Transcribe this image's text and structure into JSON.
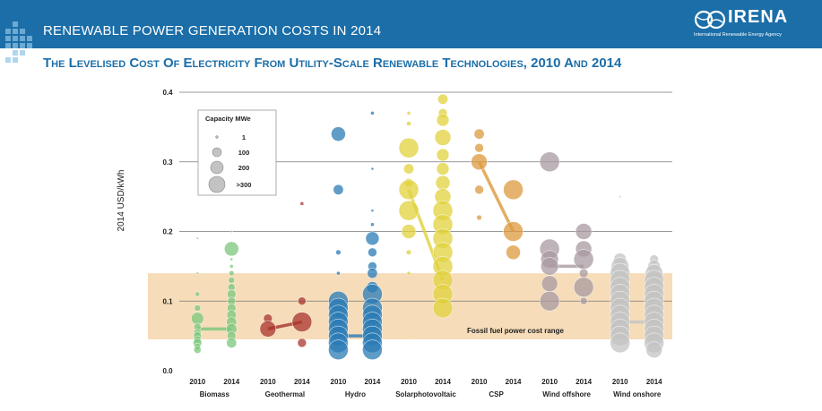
{
  "header": {
    "title": "RENEWABLE POWER GENERATION COSTS IN 2014",
    "logo_text": "IRENA",
    "logo_subtext": "International Renewable Energy Agency"
  },
  "colors": {
    "banner": "#1b6ea8",
    "subtitle": "#1b6ea8",
    "fossil_band": "#f6dcb8",
    "biomass": "#7bc77b",
    "geothermal": "#a8352e",
    "hydro": "#2a7bb5",
    "solar_pv": "#e0d23c",
    "csp": "#dc9a3c",
    "wind_offshore": "#a89aa0",
    "wind_onshore": "#c3c3c3"
  },
  "chart_data": {
    "type": "scatter",
    "title": "The Levelised Cost Of Electricity From Utility-Scale Renewable Technologies, 2010 And 2014",
    "xlabel": "",
    "ylabel": "2014 USD/kWh",
    "ylim": [
      0,
      0.4
    ],
    "y_ticks": [
      "0.0",
      "0.1",
      "0.2",
      "0.3",
      "0.4"
    ],
    "grid": true,
    "band": {
      "label": "Fossil fuel power cost range",
      "y_range": [
        0.045,
        0.14
      ]
    },
    "legend": {
      "title": "Capacity MWe",
      "placement": "top-left",
      "entries": [
        {
          "label": "1",
          "mw": 1
        },
        {
          "label": "100",
          "mw": 100
        },
        {
          "label": "200",
          "mw": 200
        },
        {
          "label": ">300",
          "mw": 300
        }
      ]
    },
    "year_labels": [
      "2010",
      "2014"
    ],
    "categories": [
      {
        "name": "Biomass",
        "color_key": "biomass",
        "avg": [
          0.06,
          0.06
        ],
        "points_2010": [
          [
            0.19,
            1
          ],
          [
            0.14,
            2
          ],
          [
            0.11,
            8
          ],
          [
            0.09,
            15
          ],
          [
            0.075,
            60
          ],
          [
            0.063,
            20
          ],
          [
            0.055,
            20
          ],
          [
            0.05,
            25
          ],
          [
            0.045,
            20
          ],
          [
            0.04,
            30
          ],
          [
            0.035,
            15
          ],
          [
            0.03,
            20
          ]
        ],
        "points_2014": [
          [
            0.2,
            1
          ],
          [
            0.175,
            80
          ],
          [
            0.16,
            3
          ],
          [
            0.15,
            5
          ],
          [
            0.14,
            10
          ],
          [
            0.13,
            15
          ],
          [
            0.12,
            20
          ],
          [
            0.11,
            30
          ],
          [
            0.1,
            25
          ],
          [
            0.09,
            30
          ],
          [
            0.08,
            35
          ],
          [
            0.07,
            40
          ],
          [
            0.06,
            45
          ],
          [
            0.05,
            30
          ],
          [
            0.04,
            40
          ]
        ]
      },
      {
        "name": "Geothermal",
        "color_key": "geothermal",
        "avg": [
          0.06,
          0.07
        ],
        "points_2010": [
          [
            0.075,
            30
          ],
          [
            0.06,
            100
          ]
        ],
        "points_2014": [
          [
            0.24,
            5
          ],
          [
            0.1,
            25
          ],
          [
            0.07,
            150
          ],
          [
            0.04,
            30
          ]
        ]
      },
      {
        "name": "Hydro",
        "color_key": "hydro",
        "avg": [
          0.05,
          0.05
        ],
        "points_2010": [
          [
            0.34,
            80
          ],
          [
            0.26,
            40
          ],
          [
            0.17,
            10
          ],
          [
            0.14,
            5
          ],
          [
            0.1,
            200
          ],
          [
            0.09,
            250
          ],
          [
            0.08,
            300
          ],
          [
            0.07,
            300
          ],
          [
            0.06,
            350
          ],
          [
            0.05,
            350
          ],
          [
            0.04,
            300
          ],
          [
            0.03,
            300
          ]
        ],
        "points_2014": [
          [
            0.37,
            5
          ],
          [
            0.29,
            3
          ],
          [
            0.23,
            3
          ],
          [
            0.21,
            5
          ],
          [
            0.19,
            70
          ],
          [
            0.17,
            30
          ],
          [
            0.15,
            30
          ],
          [
            0.14,
            40
          ],
          [
            0.12,
            50
          ],
          [
            0.11,
            150
          ],
          [
            0.09,
            200
          ],
          [
            0.08,
            250
          ],
          [
            0.07,
            300
          ],
          [
            0.06,
            350
          ],
          [
            0.05,
            350
          ],
          [
            0.04,
            300
          ],
          [
            0.03,
            250
          ]
        ]
      },
      {
        "name": "Solarphotovoltaic",
        "color_key": "solar_pv",
        "avg": [
          0.26,
          0.13
        ],
        "points_2010": [
          [
            0.37,
            5
          ],
          [
            0.355,
            8
          ],
          [
            0.32,
            350
          ],
          [
            0.29,
            40
          ],
          [
            0.27,
            30
          ],
          [
            0.26,
            300
          ],
          [
            0.23,
            250
          ],
          [
            0.2,
            80
          ],
          [
            0.17,
            10
          ],
          [
            0.14,
            5
          ],
          [
            0.05,
            2
          ]
        ],
        "points_2014": [
          [
            0.39,
            40
          ],
          [
            0.37,
            30
          ],
          [
            0.36,
            60
          ],
          [
            0.335,
            100
          ],
          [
            0.31,
            60
          ],
          [
            0.29,
            60
          ],
          [
            0.27,
            80
          ],
          [
            0.25,
            100
          ],
          [
            0.23,
            300
          ],
          [
            0.21,
            350
          ],
          [
            0.19,
            350
          ],
          [
            0.17,
            350
          ],
          [
            0.15,
            350
          ],
          [
            0.13,
            350
          ],
          [
            0.11,
            350
          ],
          [
            0.09,
            300
          ]
        ]
      },
      {
        "name": "CSP",
        "color_key": "csp",
        "avg": [
          0.3,
          0.2
        ],
        "points_2010": [
          [
            0.34,
            40
          ],
          [
            0.32,
            30
          ],
          [
            0.3,
            100
          ],
          [
            0.26,
            30
          ],
          [
            0.22,
            10
          ]
        ],
        "points_2014": [
          [
            0.26,
            200
          ],
          [
            0.2,
            250
          ],
          [
            0.17,
            80
          ]
        ]
      },
      {
        "name": "Wind offshore",
        "color_key": "wind_offshore",
        "avg": [
          0.15,
          0.15
        ],
        "points_2010": [
          [
            0.3,
            250
          ],
          [
            0.175,
            250
          ],
          [
            0.16,
            120
          ],
          [
            0.15,
            120
          ],
          [
            0.125,
            100
          ],
          [
            0.1,
            150
          ]
        ],
        "points_2014": [
          [
            0.2,
            100
          ],
          [
            0.175,
            100
          ],
          [
            0.16,
            250
          ],
          [
            0.14,
            30
          ],
          [
            0.12,
            250
          ],
          [
            0.1,
            20
          ]
        ]
      },
      {
        "name": "Wind onshore",
        "color_key": "wind_onshore",
        "avg": [
          0.07,
          0.07
        ],
        "points_2010": [
          [
            0.25,
            1
          ],
          [
            0.16,
            60
          ],
          [
            0.15,
            120
          ],
          [
            0.14,
            150
          ],
          [
            0.13,
            200
          ],
          [
            0.12,
            200
          ],
          [
            0.11,
            250
          ],
          [
            0.1,
            300
          ],
          [
            0.09,
            300
          ],
          [
            0.08,
            300
          ],
          [
            0.07,
            350
          ],
          [
            0.06,
            350
          ],
          [
            0.05,
            300
          ],
          [
            0.04,
            250
          ]
        ],
        "points_2014": [
          [
            0.16,
            30
          ],
          [
            0.15,
            60
          ],
          [
            0.14,
            120
          ],
          [
            0.13,
            250
          ],
          [
            0.12,
            250
          ],
          [
            0.11,
            300
          ],
          [
            0.1,
            300
          ],
          [
            0.09,
            300
          ],
          [
            0.08,
            300
          ],
          [
            0.07,
            300
          ],
          [
            0.06,
            300
          ],
          [
            0.05,
            200
          ],
          [
            0.04,
            150
          ],
          [
            0.03,
            100
          ]
        ]
      }
    ]
  }
}
